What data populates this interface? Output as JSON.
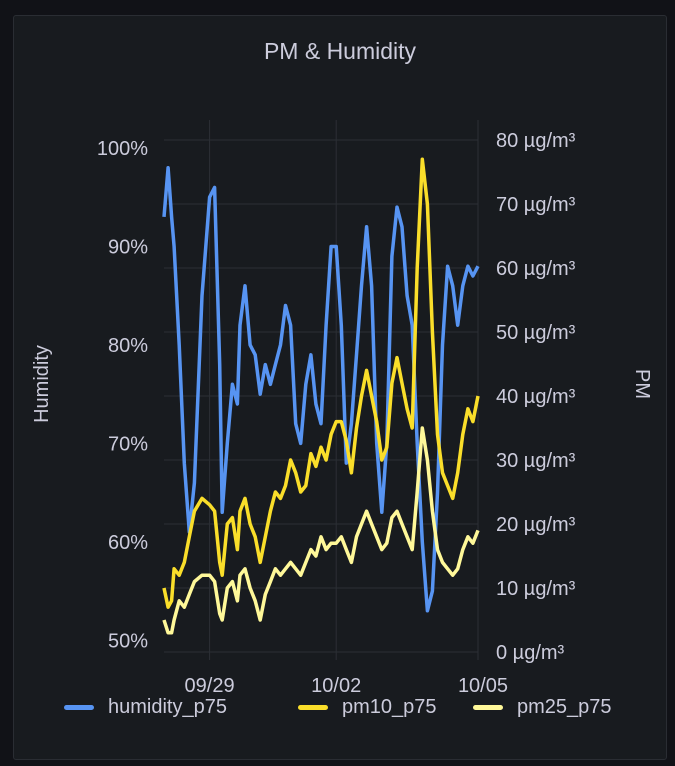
{
  "panel": {
    "title": "PM & Humidity"
  },
  "chart_data": {
    "type": "line",
    "title": "PM & Humidity",
    "x_ticks": [
      "09/29",
      "10/02",
      "10/05"
    ],
    "y_left": {
      "label": "Humidity",
      "ticks": [
        "100%",
        "90%",
        "80%",
        "70%",
        "60%",
        "50%"
      ],
      "range": [
        0.48,
        1.0
      ]
    },
    "y_right": {
      "label": "PM",
      "ticks": [
        "80 µg/m³",
        "70 µg/m³",
        "60 µg/m³",
        "50 µg/m³",
        "40 µg/m³",
        "30 µg/m³",
        "20 µg/m³",
        "10 µg/m³",
        "0 µg/m³"
      ],
      "range": [
        0,
        80
      ]
    },
    "x_range": [
      0,
      6.2
    ],
    "x_tick_positions": [
      0.9,
      3.4,
      6.2
    ],
    "grid": true,
    "legend_placement": "bottom",
    "series": [
      {
        "name": "humidity_p75",
        "axis": "left",
        "color": "#5794f2",
        "x": [
          0.0,
          0.08,
          0.15,
          0.2,
          0.3,
          0.4,
          0.5,
          0.6,
          0.75,
          0.9,
          1.0,
          1.1,
          1.15,
          1.25,
          1.35,
          1.45,
          1.5,
          1.6,
          1.7,
          1.8,
          1.9,
          2.0,
          2.1,
          2.2,
          2.3,
          2.4,
          2.5,
          2.6,
          2.7,
          2.8,
          2.9,
          3.0,
          3.1,
          3.2,
          3.3,
          3.4,
          3.5,
          3.6,
          3.7,
          3.8,
          3.9,
          4.0,
          4.1,
          4.2,
          4.3,
          4.4,
          4.5,
          4.6,
          4.7,
          4.8,
          4.9,
          5.0,
          5.1,
          5.2,
          5.3,
          5.4,
          5.5,
          5.6,
          5.7,
          5.8,
          5.9,
          6.0,
          6.1,
          6.2
        ],
        "values": [
          0.93,
          0.98,
          0.93,
          0.9,
          0.8,
          0.68,
          0.61,
          0.66,
          0.85,
          0.95,
          0.96,
          0.78,
          0.63,
          0.7,
          0.76,
          0.74,
          0.82,
          0.86,
          0.8,
          0.79,
          0.75,
          0.78,
          0.76,
          0.78,
          0.8,
          0.84,
          0.82,
          0.72,
          0.7,
          0.76,
          0.79,
          0.74,
          0.72,
          0.82,
          0.9,
          0.9,
          0.82,
          0.68,
          0.72,
          0.79,
          0.86,
          0.92,
          0.86,
          0.7,
          0.63,
          0.7,
          0.89,
          0.94,
          0.92,
          0.85,
          0.82,
          0.7,
          0.6,
          0.53,
          0.55,
          0.65,
          0.8,
          0.88,
          0.86,
          0.82,
          0.86,
          0.88,
          0.87,
          0.88
        ]
      },
      {
        "name": "pm10_p75",
        "axis": "right",
        "color": "#fade2a",
        "x": [
          0.0,
          0.08,
          0.15,
          0.2,
          0.3,
          0.4,
          0.5,
          0.6,
          0.75,
          0.9,
          1.0,
          1.1,
          1.15,
          1.25,
          1.35,
          1.45,
          1.5,
          1.6,
          1.7,
          1.8,
          1.9,
          2.0,
          2.1,
          2.2,
          2.3,
          2.4,
          2.5,
          2.6,
          2.7,
          2.8,
          2.9,
          3.0,
          3.1,
          3.2,
          3.3,
          3.4,
          3.5,
          3.6,
          3.7,
          3.8,
          3.9,
          4.0,
          4.1,
          4.2,
          4.3,
          4.4,
          4.5,
          4.6,
          4.7,
          4.8,
          4.9,
          5.0,
          5.1,
          5.2,
          5.3,
          5.4,
          5.5,
          5.6,
          5.7,
          5.8,
          5.9,
          6.0,
          6.1,
          6.2
        ],
        "values": [
          10,
          7,
          8,
          13,
          12,
          14,
          18,
          22,
          24,
          23,
          22,
          14,
          12,
          20,
          21,
          16,
          22,
          24,
          20,
          18,
          14,
          18,
          22,
          25,
          24,
          26,
          30,
          28,
          25,
          26,
          31,
          29,
          32,
          30,
          34,
          36,
          36,
          33,
          28,
          35,
          40,
          44,
          40,
          36,
          30,
          32,
          42,
          46,
          42,
          38,
          35,
          60,
          77,
          70,
          50,
          34,
          28,
          26,
          24,
          28,
          34,
          38,
          36,
          40
        ]
      },
      {
        "name": "pm25_p75",
        "axis": "right",
        "color": "#fff899",
        "x": [
          0.0,
          0.08,
          0.15,
          0.2,
          0.3,
          0.4,
          0.5,
          0.6,
          0.75,
          0.9,
          1.0,
          1.1,
          1.15,
          1.25,
          1.35,
          1.45,
          1.5,
          1.6,
          1.7,
          1.8,
          1.9,
          2.0,
          2.1,
          2.2,
          2.3,
          2.4,
          2.5,
          2.6,
          2.7,
          2.8,
          2.9,
          3.0,
          3.1,
          3.2,
          3.3,
          3.4,
          3.5,
          3.6,
          3.7,
          3.8,
          3.9,
          4.0,
          4.1,
          4.2,
          4.3,
          4.4,
          4.5,
          4.6,
          4.7,
          4.8,
          4.9,
          5.0,
          5.1,
          5.2,
          5.3,
          5.4,
          5.5,
          5.6,
          5.7,
          5.8,
          5.9,
          6.0,
          6.1,
          6.2
        ],
        "values": [
          5,
          3,
          3,
          5,
          8,
          7,
          9,
          11,
          12,
          12,
          11,
          6,
          5,
          10,
          11,
          8,
          12,
          13,
          10,
          8,
          5,
          9,
          11,
          13,
          12,
          13,
          14,
          13,
          12,
          14,
          16,
          15,
          18,
          16,
          17,
          17,
          18,
          16,
          14,
          18,
          20,
          22,
          20,
          18,
          16,
          17,
          21,
          22,
          20,
          18,
          16,
          25,
          35,
          30,
          22,
          16,
          14,
          13,
          12,
          13,
          16,
          18,
          17,
          19
        ]
      }
    ]
  }
}
